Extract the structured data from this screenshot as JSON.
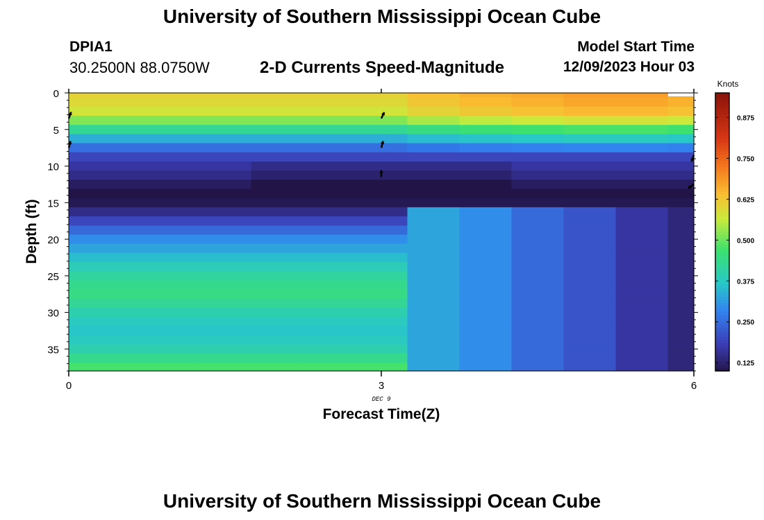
{
  "header": {
    "title": "University of Southern Mississippi Ocean Cube",
    "station": "DPIA1",
    "coords": "30.2500N  88.0750W",
    "subtitle": "2-D Currents Speed-Magnitude",
    "model_label": "Model Start Time",
    "model_value": "12/09/2023 Hour 03"
  },
  "footer": {
    "title": "University of Southern Mississippi Ocean Cube"
  },
  "chart_data": {
    "type": "heatmap",
    "title": "2-D Currents Speed-Magnitude",
    "xlabel": "Forecast Time(Z)",
    "ylabel": "Depth (ft)",
    "x_date_label": "DEC 9",
    "xlim": [
      0,
      6
    ],
    "ylim": [
      38,
      0
    ],
    "y_inverted": true,
    "x_ticks": [
      0,
      3,
      6
    ],
    "y_ticks": [
      0,
      5,
      10,
      15,
      20,
      25,
      30,
      35
    ],
    "colorbar": {
      "label": "Knots",
      "min": 0.1,
      "max": 0.95,
      "ticks": [
        0.125,
        0.25,
        0.375,
        0.5,
        0.625,
        0.75,
        0.875
      ],
      "tick_labels": [
        "0.125",
        "0.250",
        "0.375",
        "0.500",
        "0.625",
        "0.750",
        "0.875"
      ]
    },
    "time_columns": [
      0,
      0.5,
      1,
      1.5,
      2,
      2.5,
      3,
      3.5,
      4,
      4.5,
      5,
      5.5,
      6
    ],
    "depths": [
      0,
      1.25,
      2.5,
      3.75,
      5,
      6.25,
      7.5,
      8.75,
      10,
      11.25,
      12.5,
      13.75,
      15,
      16.25,
      17.5,
      18.75,
      20,
      21.25,
      22.5,
      23.75,
      25,
      26.25,
      27.5,
      28.75,
      30,
      31.25,
      32.5,
      33.75,
      35,
      36.25,
      37.5
    ],
    "speed_profile_base": [
      0.61,
      0.6,
      0.58,
      0.52,
      0.43,
      0.34,
      0.26,
      0.2,
      0.17,
      0.15,
      0.12,
      0.1,
      0.11,
      0.15,
      0.2,
      0.25,
      0.3,
      0.33,
      0.36,
      0.39,
      0.42,
      0.44,
      0.45,
      0.43,
      0.4,
      0.38,
      0.37,
      0.38,
      0.4,
      0.44,
      0.48
    ],
    "column_surface_factor": [
      1.0,
      1.0,
      1.0,
      1.0,
      1.0,
      1.0,
      1.0,
      1.05,
      1.08,
      1.1,
      1.12,
      1.12,
      1.1
    ],
    "column_lower_speed": [
      null,
      null,
      null,
      null,
      null,
      null,
      null,
      0.33,
      0.3,
      0.25,
      0.22,
      0.17,
      0.14
    ],
    "vectors": [
      {
        "t": 0,
        "depth": 3.5,
        "angle_deg": 20
      },
      {
        "t": 0,
        "depth": 7.5,
        "angle_deg": 15
      },
      {
        "t": 3,
        "depth": 3.5,
        "angle_deg": 25
      },
      {
        "t": 3,
        "depth": 7.5,
        "angle_deg": 15
      },
      {
        "t": 3,
        "depth": 11.5,
        "angle_deg": 0
      },
      {
        "t": 6,
        "depth": 8.5,
        "angle_deg": 200
      },
      {
        "t": 6,
        "depth": 12.5,
        "angle_deg": 235
      }
    ]
  }
}
